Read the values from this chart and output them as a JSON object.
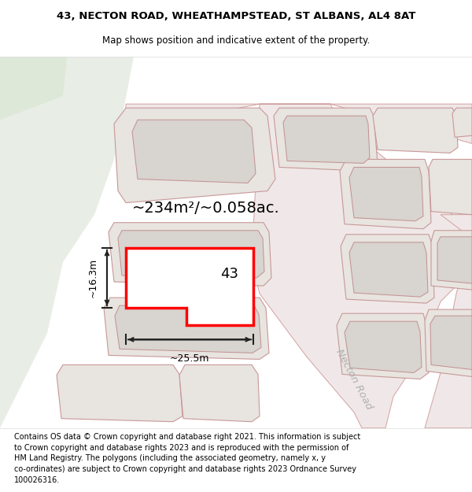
{
  "title_line1": "43, NECTON ROAD, WHEATHAMPSTEAD, ST ALBANS, AL4 8AT",
  "title_line2": "Map shows position and indicative extent of the property.",
  "footer_text": "Contains OS data © Crown copyright and database right 2021. This information is subject\nto Crown copyright and database rights 2023 and is reproduced with the permission of\nHM Land Registry. The polygons (including the associated geometry, namely x, y\nco-ordinates) are subject to Crown copyright and database rights 2023 Ordnance Survey\n100026316.",
  "map_bg": "#f4f4f0",
  "green_bg": "#e8ede6",
  "road_fill": "#f0e8e8",
  "road_outline": "#d4a0a0",
  "plot_fill": "#e8e4e0",
  "plot_outline": "#c89898",
  "inner_fill": "#d8d4d0",
  "inner_outline": "#c09090",
  "highlight_color": "#ff0000",
  "highlight_fill": "#ffffff",
  "dim_color": "#222222",
  "area_text": "~234m²/~0.058ac.",
  "width_text": "~25.5m",
  "height_text": "~16.3m",
  "number_text": "43",
  "road_label": "Necton Road",
  "title_fontsize": 9.5,
  "subtitle_fontsize": 8.5,
  "area_fontsize": 14,
  "number_fontsize": 13,
  "dim_fontsize": 9,
  "road_label_fontsize": 9.5,
  "footer_fontsize": 7.0
}
